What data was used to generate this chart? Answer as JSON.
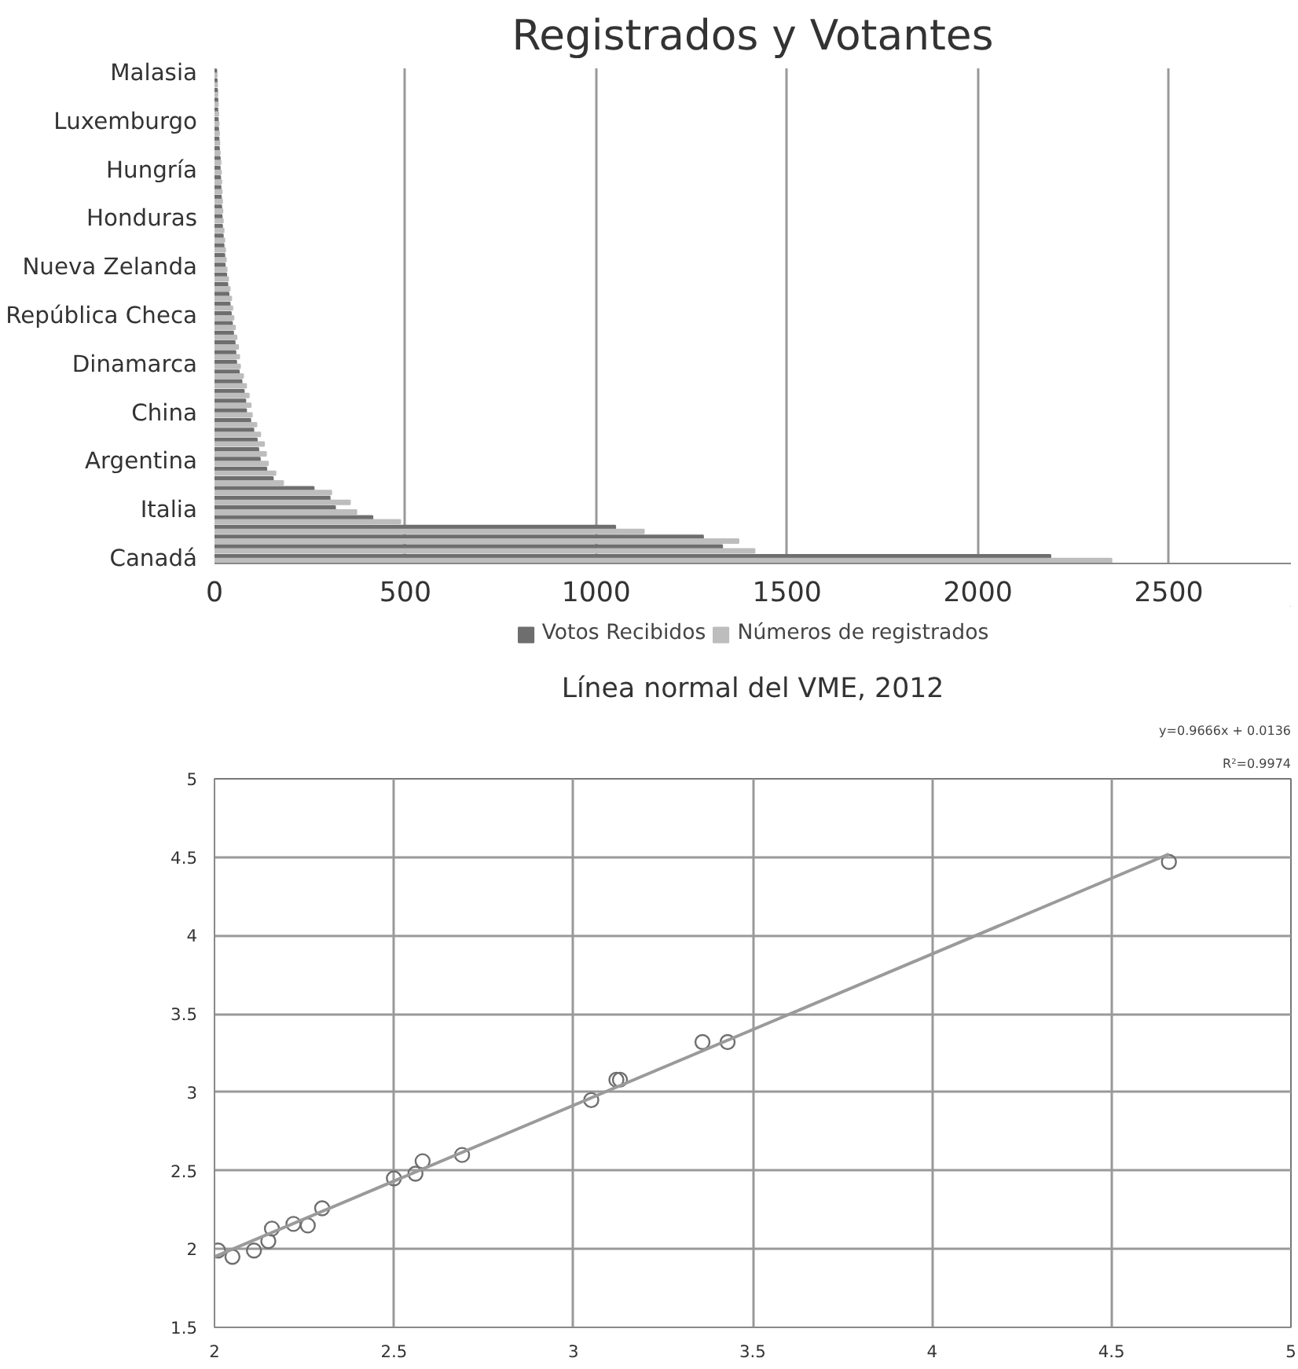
{
  "chart_data": [
    {
      "type": "bar",
      "title": "Registrados y Votantes",
      "orientation": "horizontal",
      "categories": [
        "Malasia",
        null,
        null,
        null,
        null,
        "Luxemburgo",
        null,
        null,
        null,
        null,
        "Hungría",
        null,
        null,
        null,
        null,
        "Honduras",
        null,
        null,
        null,
        null,
        "Nueva Zelanda",
        null,
        null,
        null,
        null,
        "República Checa",
        null,
        null,
        null,
        null,
        "Dinamarca",
        null,
        null,
        null,
        null,
        "China",
        null,
        null,
        null,
        null,
        "Argentina",
        null,
        null,
        null,
        null,
        "Italia",
        null,
        null,
        null,
        null,
        "Canadá"
      ],
      "series": [
        {
          "name": "Votos Recibidos",
          "color": "#6e6e6e",
          "values": [
            5,
            6,
            7,
            8,
            8,
            9,
            10,
            11,
            12,
            14,
            14,
            15,
            16,
            17,
            18,
            19,
            20,
            22,
            24,
            26,
            27,
            31,
            34,
            37,
            40,
            43,
            46,
            49,
            53,
            55,
            57,
            64,
            71,
            77,
            81,
            83,
            94,
            102,
            111,
            115,
            119,
            136,
            153,
            260,
            302,
            316,
            414,
            1050,
            1280,
            1330,
            2190
          ]
        },
        {
          "name": "Números de registrados",
          "color": "#bdbdbd",
          "values": [
            6,
            7,
            8,
            9,
            10,
            11,
            12,
            13,
            14,
            16,
            17,
            18,
            19,
            20,
            21,
            22,
            24,
            26,
            28,
            30,
            32,
            36,
            40,
            44,
            47,
            50,
            54,
            58,
            62,
            65,
            67,
            75,
            83,
            90,
            95,
            98,
            110,
            120,
            130,
            135,
            140,
            160,
            180,
            306,
            355,
            372,
            487,
            1125,
            1373,
            1415,
            2350
          ]
        }
      ],
      "xlim": [
        0,
        2820
      ],
      "xticks": [
        0,
        500,
        1000,
        1500,
        2000,
        2500
      ],
      "grid": "x",
      "legend": "bottom"
    },
    {
      "type": "scatter",
      "title": "Línea normal del VME, 2012",
      "annotations": [
        "y=0.9666x + 0.0136",
        "R²=0.9974"
      ],
      "series": [
        {
          "type": "scatter",
          "color": "#6e6e6e",
          "marker": "circle",
          "x": [
            2.01,
            2.05,
            2.11,
            2.15,
            2.16,
            2.22,
            2.26,
            2.3,
            2.5,
            2.56,
            2.58,
            2.69,
            3.05,
            3.12,
            3.13,
            3.36,
            3.43,
            4.66
          ],
          "values": [
            1.99,
            1.95,
            1.99,
            2.05,
            2.13,
            2.16,
            2.15,
            2.26,
            2.45,
            2.48,
            2.56,
            2.6,
            2.95,
            3.08,
            3.08,
            3.32,
            3.32,
            4.47
          ]
        },
        {
          "type": "line",
          "color": "#9a9a9a",
          "x": [
            2,
            4.66
          ],
          "values": [
            1.95,
            4.52
          ]
        }
      ],
      "xlim": [
        2,
        5
      ],
      "ylim": [
        1.5,
        5
      ],
      "xticks": [
        2,
        2.5,
        3,
        3.5,
        4,
        4.5,
        5
      ],
      "yticks": [
        1.5,
        2,
        2.5,
        3,
        3.5,
        4,
        4.5,
        5
      ],
      "grid": true
    }
  ]
}
